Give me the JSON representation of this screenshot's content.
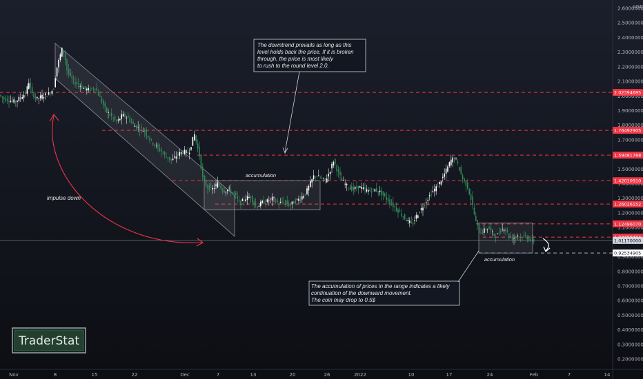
{
  "chart_data": {
    "type": "candlestick",
    "currency_label": "USD",
    "y_ticks": [
      "2.60000000",
      "2.50000000",
      "2.40000000",
      "2.30000000",
      "2.20000000",
      "2.10000000",
      "2.00000000",
      "1.90000000",
      "1.80000000",
      "1.70000000",
      "1.60000000",
      "1.50000000",
      "1.40000000",
      "1.30000000",
      "1.20000000",
      "1.10000000",
      "1.00000000",
      "0.90000000",
      "0.80000000",
      "0.70000000",
      "0.60000000",
      "0.50000000",
      "0.40000000",
      "0.30000000",
      "0.20000000"
    ],
    "x_ticks": [
      "Nov",
      "8",
      "15",
      "22",
      "Dec",
      "7",
      "13",
      "20",
      "26",
      "2022",
      "10",
      "17",
      "24",
      "Feb",
      "7",
      "14"
    ],
    "levels": [
      {
        "value": 2.02394695,
        "label": "2.02394695"
      },
      {
        "value": 1.76492905,
        "label": "1.76492905"
      },
      {
        "value": 1.59481788,
        "label": "1.59481788"
      },
      {
        "value": 1.4201091,
        "label": "1.42010910"
      },
      {
        "value": 1.26026152,
        "label": "1.26026152"
      },
      {
        "value": 1.1249607,
        "label": "1.12496070"
      },
      {
        "value": 1.03388484,
        "label": "1.03388484"
      },
      {
        "value": 0.92534905,
        "label": "0.92534905"
      }
    ],
    "current_price": {
      "value": 1.0117,
      "label": "1.01170000"
    },
    "price_path": [
      [
        0,
        2.01
      ],
      [
        8,
        1.98
      ],
      [
        16,
        1.97
      ],
      [
        24,
        1.96
      ],
      [
        32,
        1.99
      ],
      [
        40,
        2.02
      ],
      [
        44,
        2.1
      ],
      [
        48,
        2.02
      ],
      [
        56,
        1.98
      ],
      [
        64,
        2.0
      ],
      [
        72,
        2.01
      ],
      [
        80,
        2.05
      ],
      [
        84,
        2.18
      ],
      [
        88,
        2.25
      ],
      [
        92,
        2.32
      ],
      [
        96,
        2.28
      ],
      [
        100,
        2.16
      ],
      [
        104,
        2.14
      ],
      [
        108,
        2.1
      ],
      [
        116,
        2.08
      ],
      [
        124,
        2.05
      ],
      [
        132,
        2.04
      ],
      [
        140,
        2.06
      ],
      [
        148,
        1.98
      ],
      [
        156,
        1.9
      ],
      [
        164,
        1.86
      ],
      [
        172,
        1.82
      ],
      [
        180,
        1.87
      ],
      [
        188,
        1.85
      ],
      [
        196,
        1.8
      ],
      [
        204,
        1.78
      ],
      [
        212,
        1.76
      ],
      [
        220,
        1.7
      ],
      [
        228,
        1.66
      ],
      [
        236,
        1.62
      ],
      [
        244,
        1.58
      ],
      [
        252,
        1.56
      ],
      [
        260,
        1.6
      ],
      [
        268,
        1.62
      ],
      [
        276,
        1.61
      ],
      [
        284,
        1.74
      ],
      [
        288,
        1.66
      ],
      [
        292,
        1.58
      ],
      [
        296,
        1.44
      ],
      [
        302,
        1.38
      ],
      [
        310,
        1.36
      ],
      [
        318,
        1.4
      ],
      [
        326,
        1.35
      ],
      [
        334,
        1.36
      ],
      [
        342,
        1.33
      ],
      [
        350,
        1.26
      ],
      [
        358,
        1.3
      ],
      [
        366,
        1.31
      ],
      [
        374,
        1.24
      ],
      [
        382,
        1.27
      ],
      [
        390,
        1.28
      ],
      [
        398,
        1.3
      ],
      [
        406,
        1.26
      ],
      [
        414,
        1.28
      ],
      [
        422,
        1.25
      ],
      [
        430,
        1.28
      ],
      [
        438,
        1.3
      ],
      [
        446,
        1.34
      ],
      [
        452,
        1.4
      ],
      [
        458,
        1.46
      ],
      [
        466,
        1.44
      ],
      [
        474,
        1.42
      ],
      [
        480,
        1.48
      ],
      [
        486,
        1.56
      ],
      [
        492,
        1.48
      ],
      [
        498,
        1.42
      ],
      [
        506,
        1.38
      ],
      [
        514,
        1.36
      ],
      [
        522,
        1.38
      ],
      [
        530,
        1.36
      ],
      [
        538,
        1.35
      ],
      [
        546,
        1.36
      ],
      [
        554,
        1.34
      ],
      [
        562,
        1.3
      ],
      [
        570,
        1.26
      ],
      [
        578,
        1.22
      ],
      [
        586,
        1.18
      ],
      [
        594,
        1.14
      ],
      [
        600,
        1.12
      ],
      [
        606,
        1.18
      ],
      [
        612,
        1.22
      ],
      [
        620,
        1.28
      ],
      [
        628,
        1.34
      ],
      [
        636,
        1.38
      ],
      [
        644,
        1.44
      ],
      [
        650,
        1.5
      ],
      [
        656,
        1.56
      ],
      [
        662,
        1.58
      ],
      [
        668,
        1.5
      ],
      [
        674,
        1.42
      ],
      [
        680,
        1.38
      ],
      [
        686,
        1.28
      ],
      [
        692,
        1.14
      ],
      [
        698,
        1.06
      ],
      [
        704,
        1.08
      ],
      [
        710,
        1.1
      ],
      [
        716,
        1.06
      ],
      [
        722,
        1.04
      ],
      [
        728,
        1.08
      ],
      [
        734,
        1.1
      ],
      [
        740,
        1.04
      ],
      [
        746,
        1.02
      ],
      [
        752,
        1.05
      ],
      [
        758,
        1.03
      ],
      [
        764,
        1.04
      ],
      [
        770,
        1.02
      ],
      [
        774,
        1.01
      ]
    ],
    "channel": {
      "from": [
        80,
        2.36
      ],
      "to": [
        340,
        1.14
      ],
      "width": 0.22
    },
    "ranges": [
      {
        "x1": 296,
        "x2": 464,
        "y_top": 1.42,
        "y_bot": 1.22,
        "label": "accumulation"
      },
      {
        "x1": 694,
        "x2": 772,
        "y_top": 1.13,
        "y_bot": 0.925,
        "label": "accumulation"
      }
    ],
    "notes": [
      "The downtrend prevails as long as this",
      "level holds back the price. If it is broken",
      "through, the price is most likely",
      "to rush to the round level 2.0."
    ],
    "notes2": [
      "The accumulation of prices in the range indicates a likely",
      "continuation of the downward movement.",
      "The coin may drop to 0.5$"
    ],
    "impulse_label": "impulse down",
    "colors": {
      "up": "#26a69a",
      "down": "#ef5350",
      "level": "#f23645",
      "bg": "#131722"
    }
  },
  "watermark": {
    "text": "TraderStat"
  }
}
